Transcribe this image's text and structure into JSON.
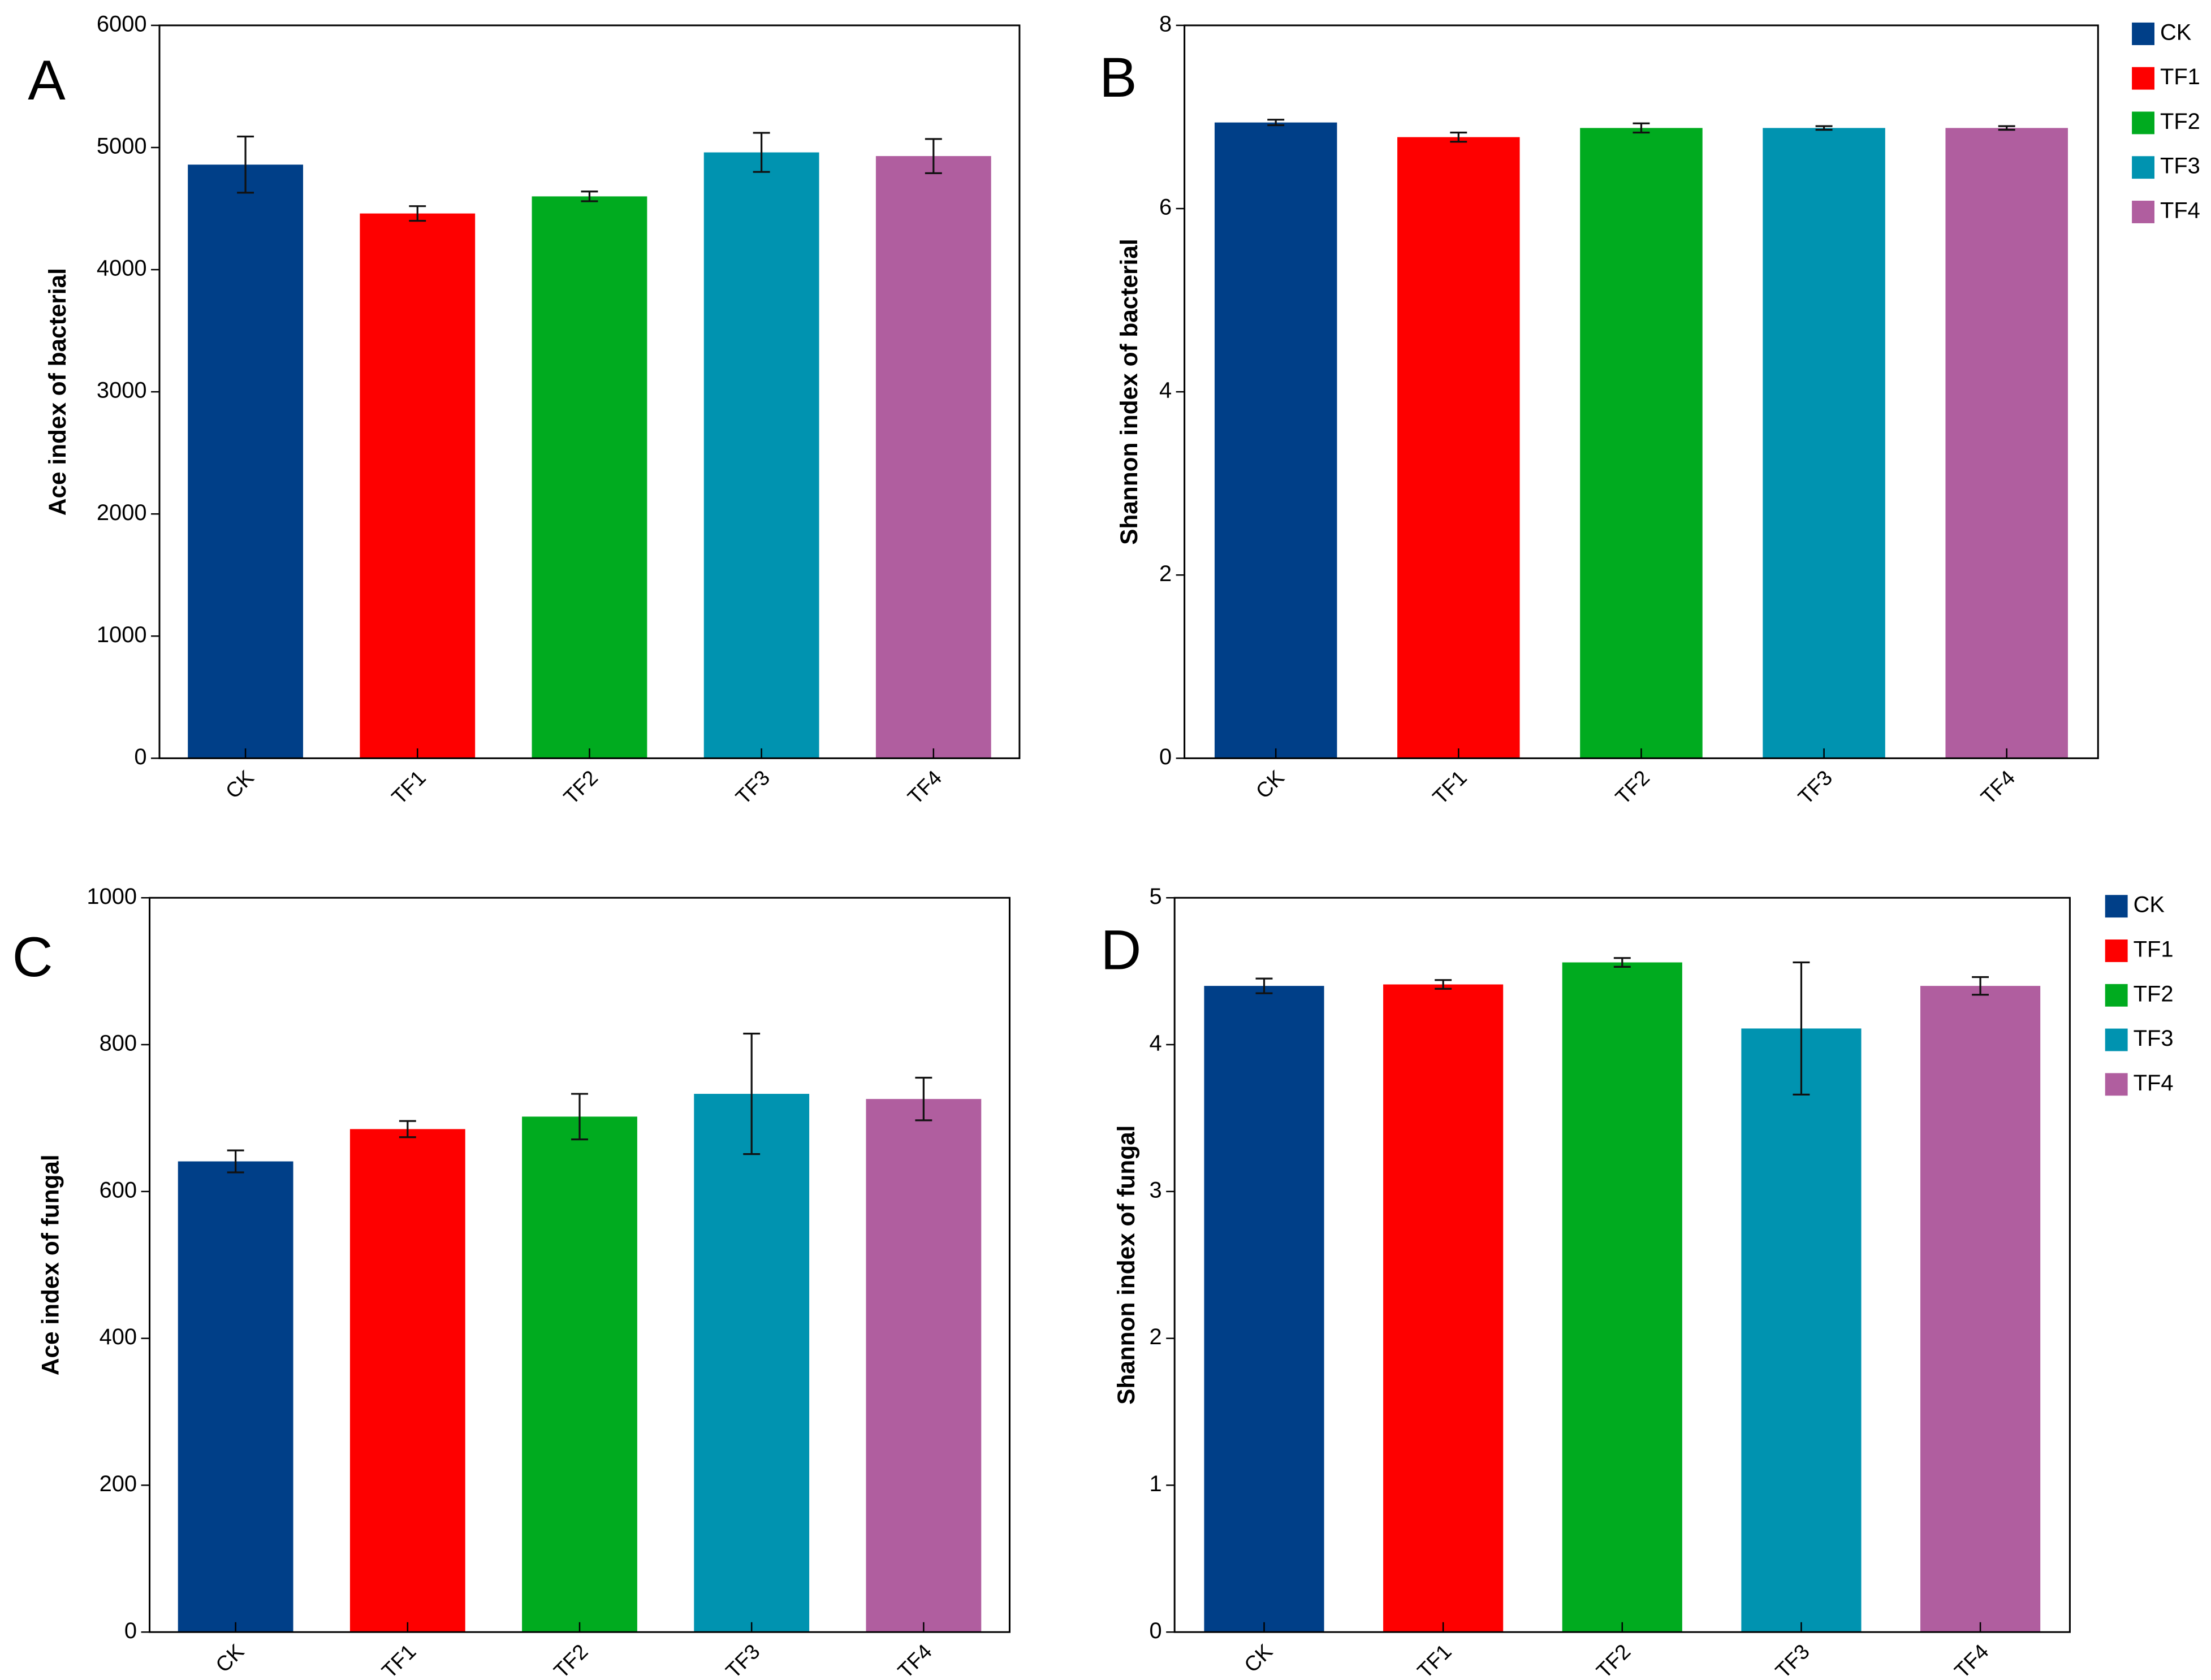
{
  "chart_data": [
    {
      "type": "bar",
      "panel_label": "A",
      "ylabel": "Ace index of bacterial",
      "categories": [
        "CK",
        "TF1",
        "TF2",
        "TF3",
        "TF4"
      ],
      "values": [
        4860,
        4460,
        4600,
        4960,
        4930
      ],
      "errors": [
        230,
        60,
        40,
        160,
        140
      ],
      "colors": [
        "#003f88",
        "#fe0000",
        "#00ab1f",
        "#0093b0",
        "#b05e9f"
      ],
      "ylim": [
        0,
        6000
      ],
      "yticks": [
        0,
        1000,
        2000,
        3000,
        4000,
        5000,
        6000
      ]
    },
    {
      "type": "bar",
      "panel_label": "B",
      "ylabel": "Shannon index of bacterial",
      "categories": [
        "CK",
        "TF1",
        "TF2",
        "TF3",
        "TF4"
      ],
      "values": [
        6.94,
        6.78,
        6.88,
        6.88,
        6.88
      ],
      "errors": [
        0.03,
        0.05,
        0.05,
        0.02,
        0.02
      ],
      "colors": [
        "#003f88",
        "#fe0000",
        "#00ab1f",
        "#0093b0",
        "#b05e9f"
      ],
      "ylim": [
        0,
        8
      ],
      "yticks": [
        0,
        2,
        4,
        6,
        8
      ],
      "legend": "right"
    },
    {
      "type": "bar",
      "panel_label": "C",
      "ylabel": "Ace index of fungal",
      "categories": [
        "CK",
        "TF1",
        "TF2",
        "TF3",
        "TF4"
      ],
      "values": [
        641,
        685,
        702,
        733,
        726
      ],
      "errors": [
        15,
        11,
        31,
        82,
        29
      ],
      "colors": [
        "#003f88",
        "#fe0000",
        "#00ab1f",
        "#0093b0",
        "#b05e9f"
      ],
      "ylim": [
        0,
        1000
      ],
      "yticks": [
        0,
        200,
        400,
        600,
        800,
        1000
      ]
    },
    {
      "type": "bar",
      "panel_label": "D",
      "ylabel": "Shannon index of fungal",
      "categories": [
        "CK",
        "TF1",
        "TF2",
        "TF3",
        "TF4"
      ],
      "values": [
        4.4,
        4.41,
        4.56,
        4.11,
        4.4
      ],
      "errors": [
        0.05,
        0.03,
        0.03,
        0.45,
        0.06
      ],
      "colors": [
        "#003f88",
        "#fe0000",
        "#00ab1f",
        "#0093b0",
        "#b05e9f"
      ],
      "ylim": [
        0,
        5
      ],
      "yticks": [
        0,
        1,
        2,
        3,
        4,
        5
      ],
      "legend": "right"
    }
  ]
}
